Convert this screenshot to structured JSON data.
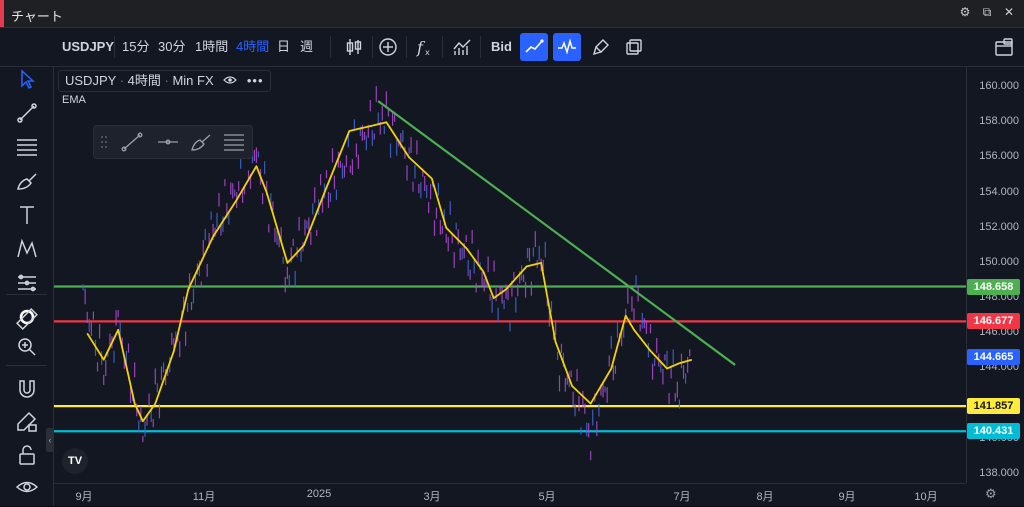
{
  "window": {
    "title": "チャート"
  },
  "toolbar": {
    "symbol": "USDJPY",
    "intervals": [
      "15分",
      "30分",
      "1時間",
      "4時間",
      "日",
      "週"
    ],
    "active_interval": "4時間",
    "price_side": "Bid",
    "accent_color": "#2962ff"
  },
  "legend": {
    "symbol": "USDJPY",
    "interval": "4時間",
    "source": "Min FX",
    "indicator": "EMA"
  },
  "chart_data": {
    "type": "line",
    "symbol": "USDJPY",
    "price_axis": {
      "min": 138.0,
      "max": 160.0,
      "ticks": [
        160.0,
        158.0,
        156.0,
        154.0,
        152.0,
        150.0,
        148.0,
        146.0,
        144.0,
        142.0,
        140.0,
        138.0
      ]
    },
    "time_axis": {
      "ticks": [
        "9月",
        "11月",
        "2025",
        "3月",
        "5月",
        "7月",
        "8月",
        "9月",
        "10月"
      ]
    },
    "series": [
      {
        "name": "EMA",
        "color": "#f5d300",
        "x": [
          "2024-08-20",
          "2024-08-28",
          "2024-09-04",
          "2024-09-12",
          "2024-09-16",
          "2024-09-22",
          "2024-10-01",
          "2024-10-08",
          "2024-10-20",
          "2024-10-31",
          "2024-11-10",
          "2024-11-15",
          "2024-11-25",
          "2024-12-03",
          "2024-12-13",
          "2024-12-25",
          "2025-01-05",
          "2025-01-12",
          "2025-01-23",
          "2025-02-03",
          "2025-02-10",
          "2025-02-20",
          "2025-02-28",
          "2025-03-05",
          "2025-03-11",
          "2025-03-21",
          "2025-03-28",
          "2025-04-04",
          "2025-04-12",
          "2025-04-21",
          "2025-05-01",
          "2025-05-08",
          "2025-05-12",
          "2025-05-20",
          "2025-05-28",
          "2025-06-03",
          "2025-06-09"
        ],
        "y": [
          146.0,
          144.5,
          146.2,
          142.0,
          141.0,
          142.0,
          145.0,
          148.5,
          151.5,
          153.5,
          155.5,
          154.0,
          150.0,
          151.0,
          154.0,
          157.5,
          157.8,
          158.0,
          156.0,
          154.8,
          152.0,
          150.8,
          149.5,
          148.0,
          148.5,
          149.8,
          150.0,
          145.5,
          143.0,
          142.0,
          144.0,
          147.0,
          146.2,
          145.0,
          144.0,
          144.3,
          144.5
        ]
      },
      {
        "name": "Price",
        "color": "#b34ad6",
        "x": [
          "2024-08-18",
          "2024-08-28",
          "2024-09-04",
          "2024-09-16",
          "2024-10-01",
          "2024-10-20",
          "2024-11-10",
          "2024-11-25",
          "2024-12-13",
          "2025-01-10",
          "2025-01-23",
          "2025-02-10",
          "2025-03-11",
          "2025-03-28",
          "2025-04-04",
          "2025-04-21",
          "2025-05-01",
          "2025-05-12",
          "2025-05-20",
          "2025-06-03",
          "2025-06-09"
        ],
        "y": [
          148.0,
          144.0,
          146.5,
          140.5,
          145.0,
          152.0,
          156.0,
          149.5,
          154.0,
          158.7,
          156.0,
          152.0,
          147.5,
          151.0,
          145.0,
          140.5,
          144.0,
          148.5,
          145.0,
          143.0,
          145.0
        ]
      }
    ],
    "trendline": {
      "color": "#4caf50",
      "from": {
        "x": "2025-01-08",
        "y": 159.2
      },
      "to": {
        "x": "2025-06-30",
        "y": 144.2
      }
    },
    "horizontal_levels": [
      {
        "price": 148.658,
        "label": "148.658",
        "color": "#4caf50"
      },
      {
        "price": 146.677,
        "label": "146.677",
        "color": "#f23645"
      },
      {
        "price": 141.857,
        "label": "141.857",
        "color": "#ffeb3b"
      },
      {
        "price": 140.431,
        "label": "140.431",
        "color": "#00bcd4"
      }
    ],
    "last_price": {
      "price": 144.665,
      "label": "144.665",
      "color": "#2962ff"
    },
    "grid": false
  }
}
